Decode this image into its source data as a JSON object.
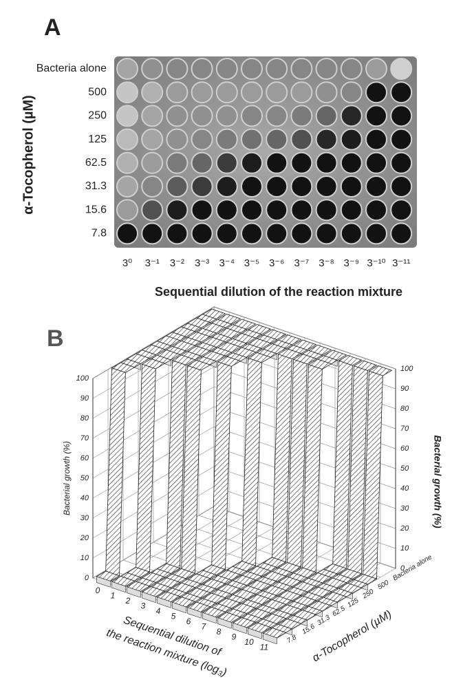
{
  "chart_data": [
    {
      "type": "well-plate",
      "panel_label": "A",
      "y_label": "α-Tocopherol (µM)",
      "x_label": "Sequential dilution of the reaction mixture",
      "categories": [
        "3⁰",
        "3⁻¹",
        "3⁻²",
        "3⁻³",
        "3⁻⁴",
        "3⁻⁵",
        "3⁻⁶",
        "3⁻⁷",
        "3⁻⁸",
        "3⁻⁹",
        "3⁻¹⁰",
        "3⁻¹¹"
      ],
      "series": [
        {
          "name": "Bacteria alone",
          "values": [
            30,
            40,
            45,
            45,
            45,
            45,
            45,
            45,
            45,
            45,
            35,
            10
          ]
        },
        {
          "name": "500",
          "values": [
            15,
            25,
            35,
            35,
            35,
            35,
            35,
            35,
            40,
            45,
            100,
            100
          ]
        },
        {
          "name": "250",
          "values": [
            15,
            30,
            40,
            40,
            40,
            45,
            45,
            50,
            60,
            90,
            100,
            100
          ]
        },
        {
          "name": "125",
          "values": [
            20,
            30,
            40,
            45,
            50,
            55,
            60,
            70,
            90,
            95,
            100,
            100
          ]
        },
        {
          "name": "62.5",
          "values": [
            25,
            35,
            50,
            60,
            80,
            95,
            100,
            100,
            100,
            100,
            100,
            100
          ]
        },
        {
          "name": "31.3",
          "values": [
            30,
            45,
            65,
            80,
            95,
            100,
            100,
            100,
            100,
            100,
            100,
            100
          ]
        },
        {
          "name": "15.6",
          "values": [
            35,
            70,
            95,
            100,
            100,
            100,
            100,
            100,
            100,
            100,
            100,
            100
          ]
        },
        {
          "name": "7.8",
          "values": [
            100,
            100,
            100,
            100,
            100,
            100,
            100,
            100,
            100,
            100,
            100,
            100
          ]
        }
      ]
    },
    {
      "type": "ribbon-3d",
      "panel_label": "B",
      "x_label_lines": [
        "Sequential dilution of",
        "the reaction mixture (log₃)"
      ],
      "y_label": "α-Tocopherol (µM)",
      "z_label": "Bacterial growth (%)",
      "x": [
        0,
        1,
        2,
        3,
        4,
        5,
        6,
        7,
        8,
        9,
        10,
        11
      ],
      "xlim": [
        -0.5,
        11.5
      ],
      "xticks": [
        0,
        1,
        2,
        3,
        4,
        5,
        6,
        7,
        8,
        9,
        10,
        11
      ],
      "zlim": [
        0,
        100
      ],
      "zticks": [
        0,
        10,
        20,
        30,
        40,
        50,
        60,
        70,
        80,
        90,
        100
      ],
      "color": "#333333",
      "grid": true,
      "series": [
        {
          "name": "7.8",
          "values": [
            0,
            0,
            0,
            0,
            0,
            0,
            0,
            0,
            0,
            0,
            0,
            0
          ]
        },
        {
          "name": "15.6",
          "values": [
            100,
            0,
            0,
            0,
            0,
            0,
            0,
            0,
            0,
            0,
            0,
            0
          ]
        },
        {
          "name": "31.3",
          "values": [
            100,
            100,
            0,
            0,
            0,
            0,
            0,
            0,
            0,
            0,
            0,
            0
          ]
        },
        {
          "name": "62.5",
          "values": [
            100,
            100,
            100,
            100,
            0,
            0,
            0,
            0,
            0,
            0,
            0,
            0
          ]
        },
        {
          "name": "125",
          "values": [
            100,
            100,
            100,
            100,
            100,
            0,
            0,
            0,
            0,
            0,
            0,
            0
          ]
        },
        {
          "name": "250",
          "values": [
            100,
            100,
            100,
            100,
            100,
            100,
            0,
            0,
            0,
            0,
            0,
            0
          ]
        },
        {
          "name": "500",
          "values": [
            100,
            100,
            100,
            100,
            100,
            100,
            100,
            100,
            100,
            0,
            0,
            0
          ]
        },
        {
          "name": "Bacteria alone",
          "values": [
            100,
            100,
            100,
            100,
            100,
            100,
            100,
            100,
            100,
            100,
            100,
            100
          ]
        }
      ]
    }
  ]
}
